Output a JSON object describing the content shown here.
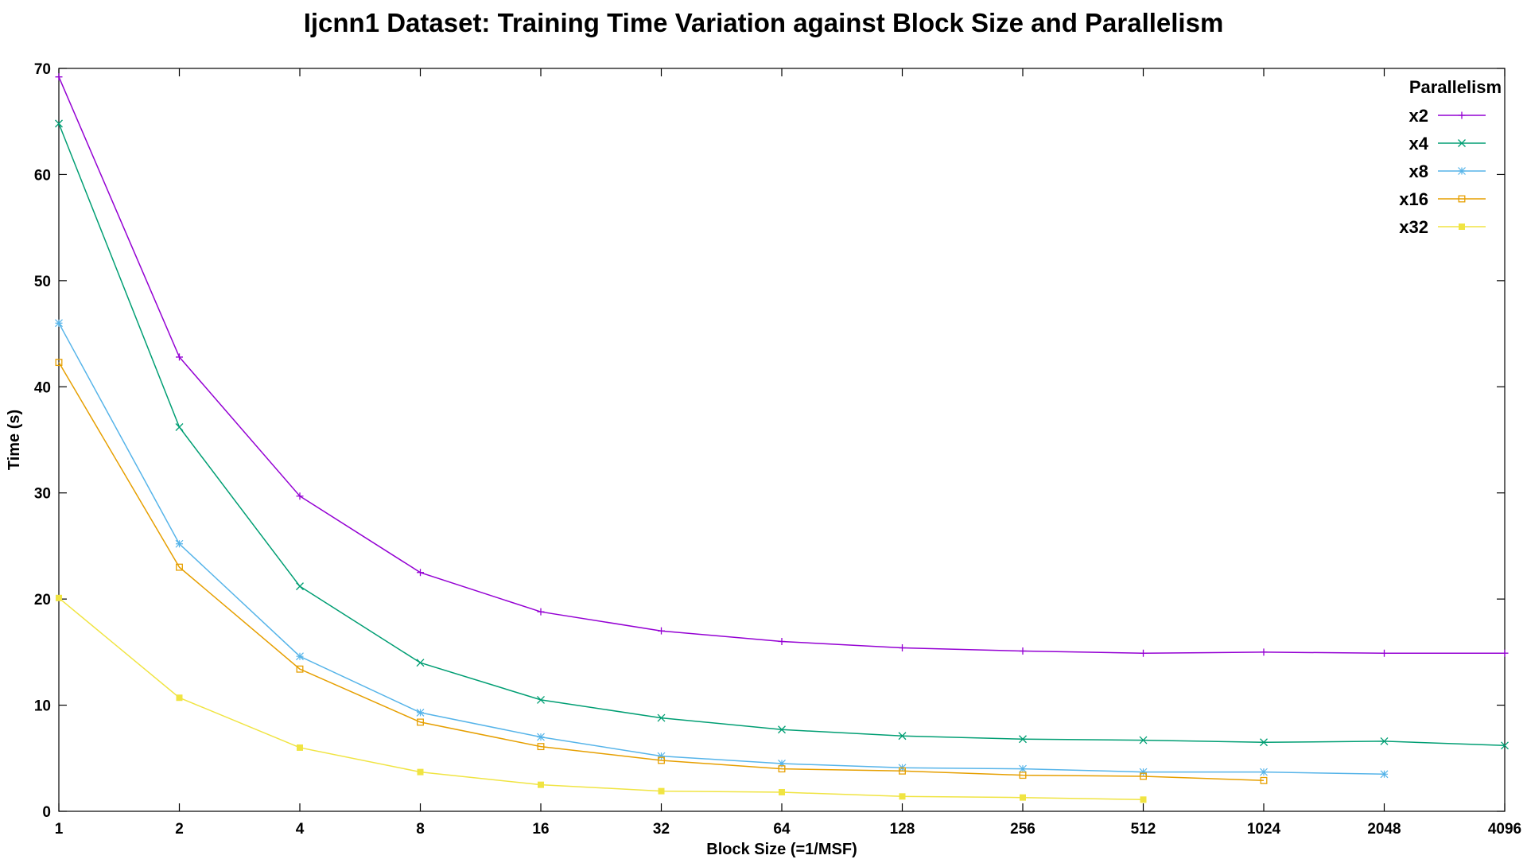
{
  "chart_data": {
    "type": "line",
    "title": "Ijcnn1 Dataset: Training Time Variation against Block Size and Parallelism",
    "xlabel": "Block Size (=1/MSF)",
    "ylabel": "Time (s)",
    "x_scale": "log2",
    "categories": [
      "1",
      "2",
      "4",
      "8",
      "16",
      "32",
      "64",
      "128",
      "256",
      "512",
      "1024",
      "2048",
      "4096"
    ],
    "x": [
      1,
      2,
      4,
      8,
      16,
      32,
      64,
      128,
      256,
      512,
      1024,
      2048,
      4096
    ],
    "yticks": [
      "0",
      "10",
      "20",
      "30",
      "40",
      "50",
      "60",
      "70"
    ],
    "ylim": [
      0,
      70
    ],
    "grid": false,
    "legend_title": "Parallelism",
    "legend_position": "top-right",
    "series": [
      {
        "name": "x2",
        "color": "#9400d3",
        "marker": "plus",
        "x": [
          1,
          2,
          4,
          8,
          16,
          32,
          64,
          128,
          256,
          512,
          1024,
          2048,
          4096
        ],
        "values": [
          69.2,
          42.8,
          29.7,
          22.5,
          18.8,
          17.0,
          16.0,
          15.4,
          15.1,
          14.9,
          15.0,
          14.9,
          14.9
        ]
      },
      {
        "name": "x4",
        "color": "#009e73",
        "marker": "cross",
        "x": [
          1,
          2,
          4,
          8,
          16,
          32,
          64,
          128,
          256,
          512,
          1024,
          2048,
          4096
        ],
        "values": [
          64.8,
          36.2,
          21.2,
          14.0,
          10.5,
          8.8,
          7.7,
          7.1,
          6.8,
          6.7,
          6.5,
          6.6,
          6.2
        ]
      },
      {
        "name": "x8",
        "color": "#56b4e9",
        "marker": "star",
        "x": [
          1,
          2,
          4,
          8,
          16,
          32,
          64,
          128,
          256,
          512,
          1024,
          2048
        ],
        "values": [
          46.0,
          25.2,
          14.6,
          9.3,
          7.0,
          5.2,
          4.5,
          4.1,
          4.0,
          3.7,
          3.7,
          3.5
        ]
      },
      {
        "name": "x16",
        "color": "#e69f00",
        "marker": "open-square",
        "x": [
          1,
          2,
          4,
          8,
          16,
          32,
          64,
          128,
          256,
          512,
          1024
        ],
        "values": [
          42.3,
          23.0,
          13.4,
          8.4,
          6.1,
          4.8,
          4.0,
          3.8,
          3.4,
          3.3,
          2.9
        ]
      },
      {
        "name": "x32",
        "color": "#f0e442",
        "marker": "filled-square",
        "x": [
          1,
          2,
          4,
          8,
          16,
          32,
          64,
          128,
          256,
          512
        ],
        "values": [
          20.1,
          10.7,
          6.0,
          3.7,
          2.5,
          1.9,
          1.8,
          1.4,
          1.3,
          1.1
        ]
      }
    ]
  }
}
